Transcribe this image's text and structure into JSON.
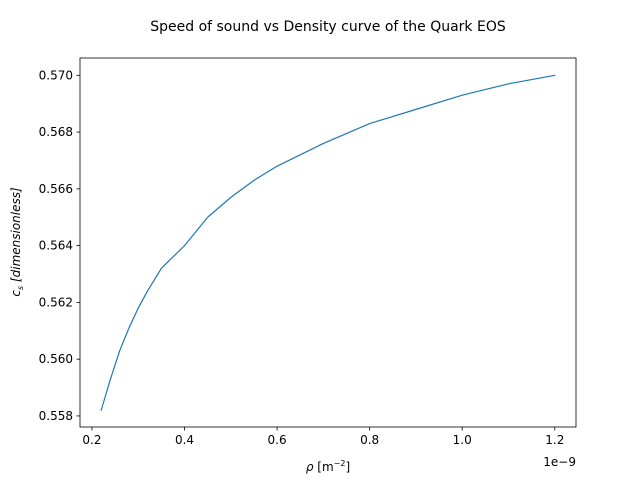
{
  "chart_data": {
    "type": "line",
    "title": "Speed of sound vs Density curve of the Quark EOS",
    "xlabel_symbol": "ρ",
    "xlabel_unit_base": "[m",
    "xlabel_unit_exp": "−2",
    "xlabel_unit_close": "]",
    "ylabel_symbol": "c",
    "ylabel_sub": "s",
    "ylabel_unit": "[dimensionless]",
    "x_offset_text": "1e−9",
    "x_scale": 1e-09,
    "xlim": [
      0.1742,
      1.2458
    ],
    "ylim": [
      0.55761,
      0.57061
    ],
    "xticks": [
      0.2,
      0.4,
      0.6,
      0.8,
      1.0,
      1.2
    ],
    "xtick_labels": [
      "0.2",
      "0.4",
      "0.6",
      "0.8",
      "1.0",
      "1.2"
    ],
    "yticks": [
      0.558,
      0.56,
      0.562,
      0.564,
      0.566,
      0.568,
      0.57
    ],
    "ytick_labels": [
      "0.558",
      "0.560",
      "0.562",
      "0.564",
      "0.566",
      "0.568",
      "0.570"
    ],
    "grid": false,
    "line_color": "#1f77b4",
    "series": [
      {
        "x": [
          0.22,
          0.24,
          0.26,
          0.28,
          0.3,
          0.32,
          0.35,
          0.4,
          0.45,
          0.5,
          0.55,
          0.6,
          0.7,
          0.8,
          0.9,
          1.0,
          1.1,
          1.2
        ],
        "y": [
          0.5582,
          0.5593,
          0.5603,
          0.5611,
          0.5618,
          0.5624,
          0.5632,
          0.564,
          0.565,
          0.5657,
          0.5663,
          0.5668,
          0.5676,
          0.5683,
          0.5688,
          0.5693,
          0.5697,
          0.57
        ]
      }
    ]
  }
}
